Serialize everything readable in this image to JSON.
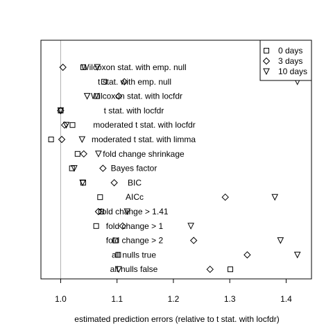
{
  "chart_data": {
    "type": "scatter",
    "title": "",
    "xlabel": "estimated prediction errors (relative to t stat. with locfdr)",
    "ylabel": "",
    "xlim": [
      0.965,
      1.445
    ],
    "x_ticks": [
      1.0,
      1.1,
      1.2,
      1.3,
      1.4
    ],
    "x_tick_labels": [
      "1.0",
      "1.1",
      "1.2",
      "1.3",
      "1.4"
    ],
    "reference_line_x": 1.0,
    "reference_line_color": "#b0b0b0",
    "legend_position": "top-right",
    "series": [
      {
        "name": "0 days",
        "marker": "square"
      },
      {
        "name": "3 days",
        "marker": "diamond"
      },
      {
        "name": "10 days",
        "marker": "triangle-down"
      }
    ],
    "methods": [
      "Wilcoxon stat. with emp. null",
      "t stat. with emp. null",
      "Wilcoxon stat. with locfdr",
      "t stat. with locfdr",
      "moderated t stat. with locfdr",
      "moderated t stat. with limma",
      "fold change shrinkage",
      "Bayes factor",
      "BIC",
      "AICc",
      "fold change > 1.41",
      "fold change > 1",
      "fold change > 2",
      "all nulls true",
      "all nulls false"
    ],
    "values": {
      "0 days": [
        1.04,
        1.077,
        1.064,
        1.0,
        1.021,
        0.983,
        1.03,
        1.02,
        1.04,
        1.07,
        1.072,
        1.063,
        1.097,
        1.102,
        1.301
      ],
      "3 days": [
        1.004,
        1.113,
        1.103,
        1.0,
        1.007,
        1.002,
        1.041,
        1.075,
        1.095,
        1.292,
        1.067,
        1.11,
        1.236,
        1.331,
        1.265
      ],
      "10 days": [
        1.065,
        1.42,
        1.047,
        1.0,
        1.01,
        1.038,
        1.067,
        1.024,
        1.039,
        1.38,
        1.118,
        1.231,
        1.39,
        1.42,
        1.103
      ]
    }
  }
}
